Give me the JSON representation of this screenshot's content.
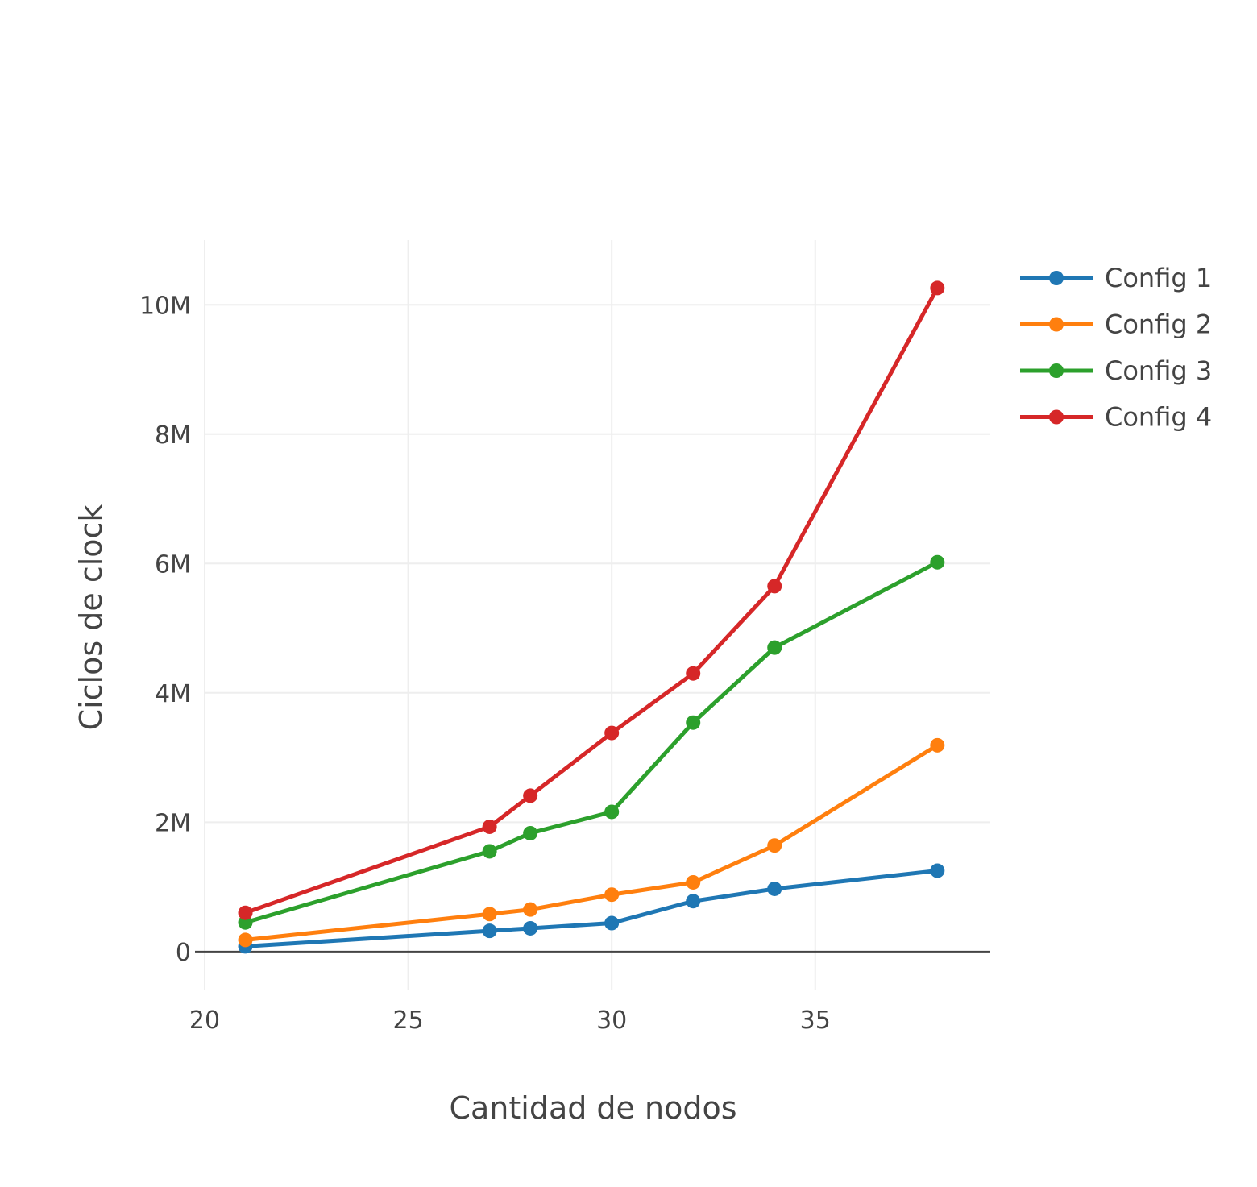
{
  "chart_data": {
    "type": "line",
    "title": "",
    "xlabel": "Cantidad de nodos",
    "ylabel": "Ciclos de clock",
    "xlim": [
      20,
      39.3
    ],
    "ylim": [
      -0.6,
      11
    ],
    "x_ticks": [
      20,
      25,
      30,
      35
    ],
    "x_tick_labels": [
      "20",
      "25",
      "30",
      "35"
    ],
    "y_ticks": [
      0,
      2,
      4,
      6,
      8,
      10
    ],
    "y_tick_labels": [
      "0",
      "2M",
      "4M",
      "6M",
      "8M",
      "10M"
    ],
    "y_unit": "millions",
    "grid": true,
    "legend_position": "top-right",
    "x": [
      21,
      27,
      28,
      30,
      32,
      34,
      38
    ],
    "series": [
      {
        "name": "Config 1",
        "color": "#1f77b4",
        "values": [
          0.08,
          0.32,
          0.36,
          0.44,
          0.78,
          0.97,
          1.25
        ]
      },
      {
        "name": "Config 2",
        "color": "#ff7f0e",
        "values": [
          0.18,
          0.58,
          0.65,
          0.88,
          1.07,
          1.64,
          3.19
        ]
      },
      {
        "name": "Config 3",
        "color": "#2ca02c",
        "values": [
          0.45,
          1.55,
          1.83,
          2.16,
          3.54,
          4.7,
          6.02
        ]
      },
      {
        "name": "Config 4",
        "color": "#d62728",
        "values": [
          0.6,
          1.93,
          2.41,
          3.38,
          4.3,
          5.65,
          10.26
        ]
      }
    ]
  }
}
